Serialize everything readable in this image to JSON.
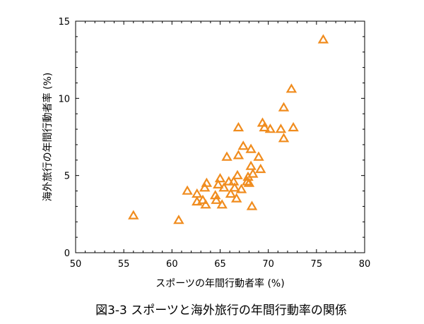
{
  "chart_data": {
    "type": "scatter",
    "title": "",
    "caption": "図3-3 スポーツと海外旅行の年間行動率の関係",
    "xlabel": "スポーツの年間行動者率 (%)",
    "ylabel": "海外旅行の年間行動者率 (%)",
    "xlim": [
      50,
      80
    ],
    "ylim": [
      0,
      15
    ],
    "xticks": [
      50,
      55,
      60,
      65,
      70,
      75,
      80
    ],
    "yticks": [
      0,
      5,
      10,
      15
    ],
    "xtick_labels": [
      "50",
      "55",
      "60",
      "65",
      "70",
      "75",
      "80"
    ],
    "ytick_labels": [
      "0",
      "5",
      "10",
      "15"
    ],
    "grid": false,
    "legend": "none",
    "marker": "open-triangle",
    "marker_color": "#f08c1e",
    "series": [
      {
        "points": [
          [
            56.0,
            2.4
          ],
          [
            60.7,
            2.1
          ],
          [
            61.6,
            4.0
          ],
          [
            62.6,
            3.8
          ],
          [
            62.6,
            3.3
          ],
          [
            63.2,
            3.4
          ],
          [
            63.4,
            4.2
          ],
          [
            63.5,
            3.1
          ],
          [
            63.6,
            4.5
          ],
          [
            64.5,
            3.7
          ],
          [
            64.6,
            3.4
          ],
          [
            64.8,
            4.4
          ],
          [
            65.0,
            4.8
          ],
          [
            65.2,
            3.1
          ],
          [
            65.4,
            4.2
          ],
          [
            65.7,
            6.2
          ],
          [
            65.9,
            4.6
          ],
          [
            66.1,
            3.8
          ],
          [
            66.4,
            4.6
          ],
          [
            66.5,
            4.2
          ],
          [
            66.7,
            3.5
          ],
          [
            66.8,
            5.0
          ],
          [
            66.9,
            8.1
          ],
          [
            66.9,
            6.3
          ],
          [
            67.2,
            4.1
          ],
          [
            67.4,
            6.9
          ],
          [
            67.8,
            4.6
          ],
          [
            67.9,
            4.9
          ],
          [
            68.0,
            4.5
          ],
          [
            68.2,
            5.6
          ],
          [
            68.2,
            6.7
          ],
          [
            68.3,
            3.0
          ],
          [
            68.4,
            5.1
          ],
          [
            69.0,
            6.2
          ],
          [
            69.2,
            5.4
          ],
          [
            69.4,
            8.4
          ],
          [
            69.6,
            8.1
          ],
          [
            70.2,
            8.0
          ],
          [
            71.3,
            8.0
          ],
          [
            71.6,
            9.4
          ],
          [
            71.6,
            7.4
          ],
          [
            72.4,
            10.6
          ],
          [
            72.6,
            8.1
          ],
          [
            75.7,
            13.8
          ]
        ]
      }
    ]
  }
}
